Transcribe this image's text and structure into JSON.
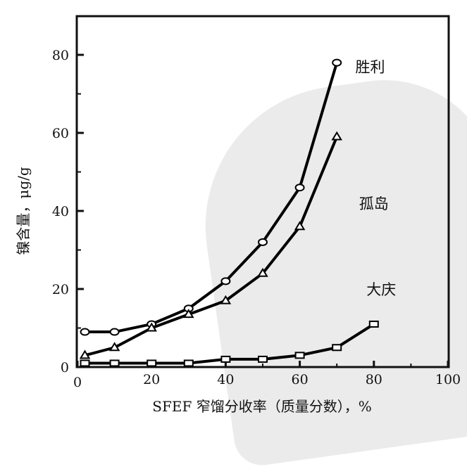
{
  "chart_data": {
    "type": "line",
    "title": "",
    "xlabel": "SFEF 窄馏分收率（质量分数），%",
    "ylabel": "镍含量，μg/g",
    "xlim": [
      0,
      100
    ],
    "ylim": [
      0,
      90
    ],
    "xticks": [
      0,
      20,
      40,
      60,
      80,
      100
    ],
    "yticks": [
      0,
      20,
      40,
      60,
      80
    ],
    "grid": false,
    "legend": "inline labels near curve ends",
    "series": [
      {
        "name": "胜利",
        "marker": "circle",
        "x": [
          2,
          10,
          20,
          30,
          40,
          50,
          60,
          70
        ],
        "values": [
          9,
          9,
          11,
          15,
          22,
          32,
          46,
          78
        ],
        "label_pos": [
          75,
          77
        ]
      },
      {
        "name": "孤岛",
        "marker": "triangle",
        "x": [
          2,
          10,
          20,
          30,
          40,
          50,
          60,
          70
        ],
        "values": [
          3,
          5,
          10,
          13.5,
          17,
          24,
          36,
          59
        ],
        "label_pos": [
          76,
          42
        ]
      },
      {
        "name": "大庆",
        "marker": "square",
        "x": [
          2,
          10,
          20,
          30,
          40,
          50,
          60,
          70,
          80
        ],
        "values": [
          1,
          1,
          1,
          1,
          2,
          2,
          3,
          5,
          11
        ],
        "label_pos": [
          78,
          20
        ]
      }
    ]
  },
  "axes": {
    "x_tick_labels": [
      "0",
      "20",
      "40",
      "60",
      "80",
      "100"
    ],
    "y_tick_labels": [
      "0",
      "20",
      "40",
      "60",
      "80"
    ],
    "origin_label": "0"
  },
  "colors": {
    "line": "#000000",
    "marker_fill": "#ffffff",
    "watermark": "#ebebeb"
  }
}
